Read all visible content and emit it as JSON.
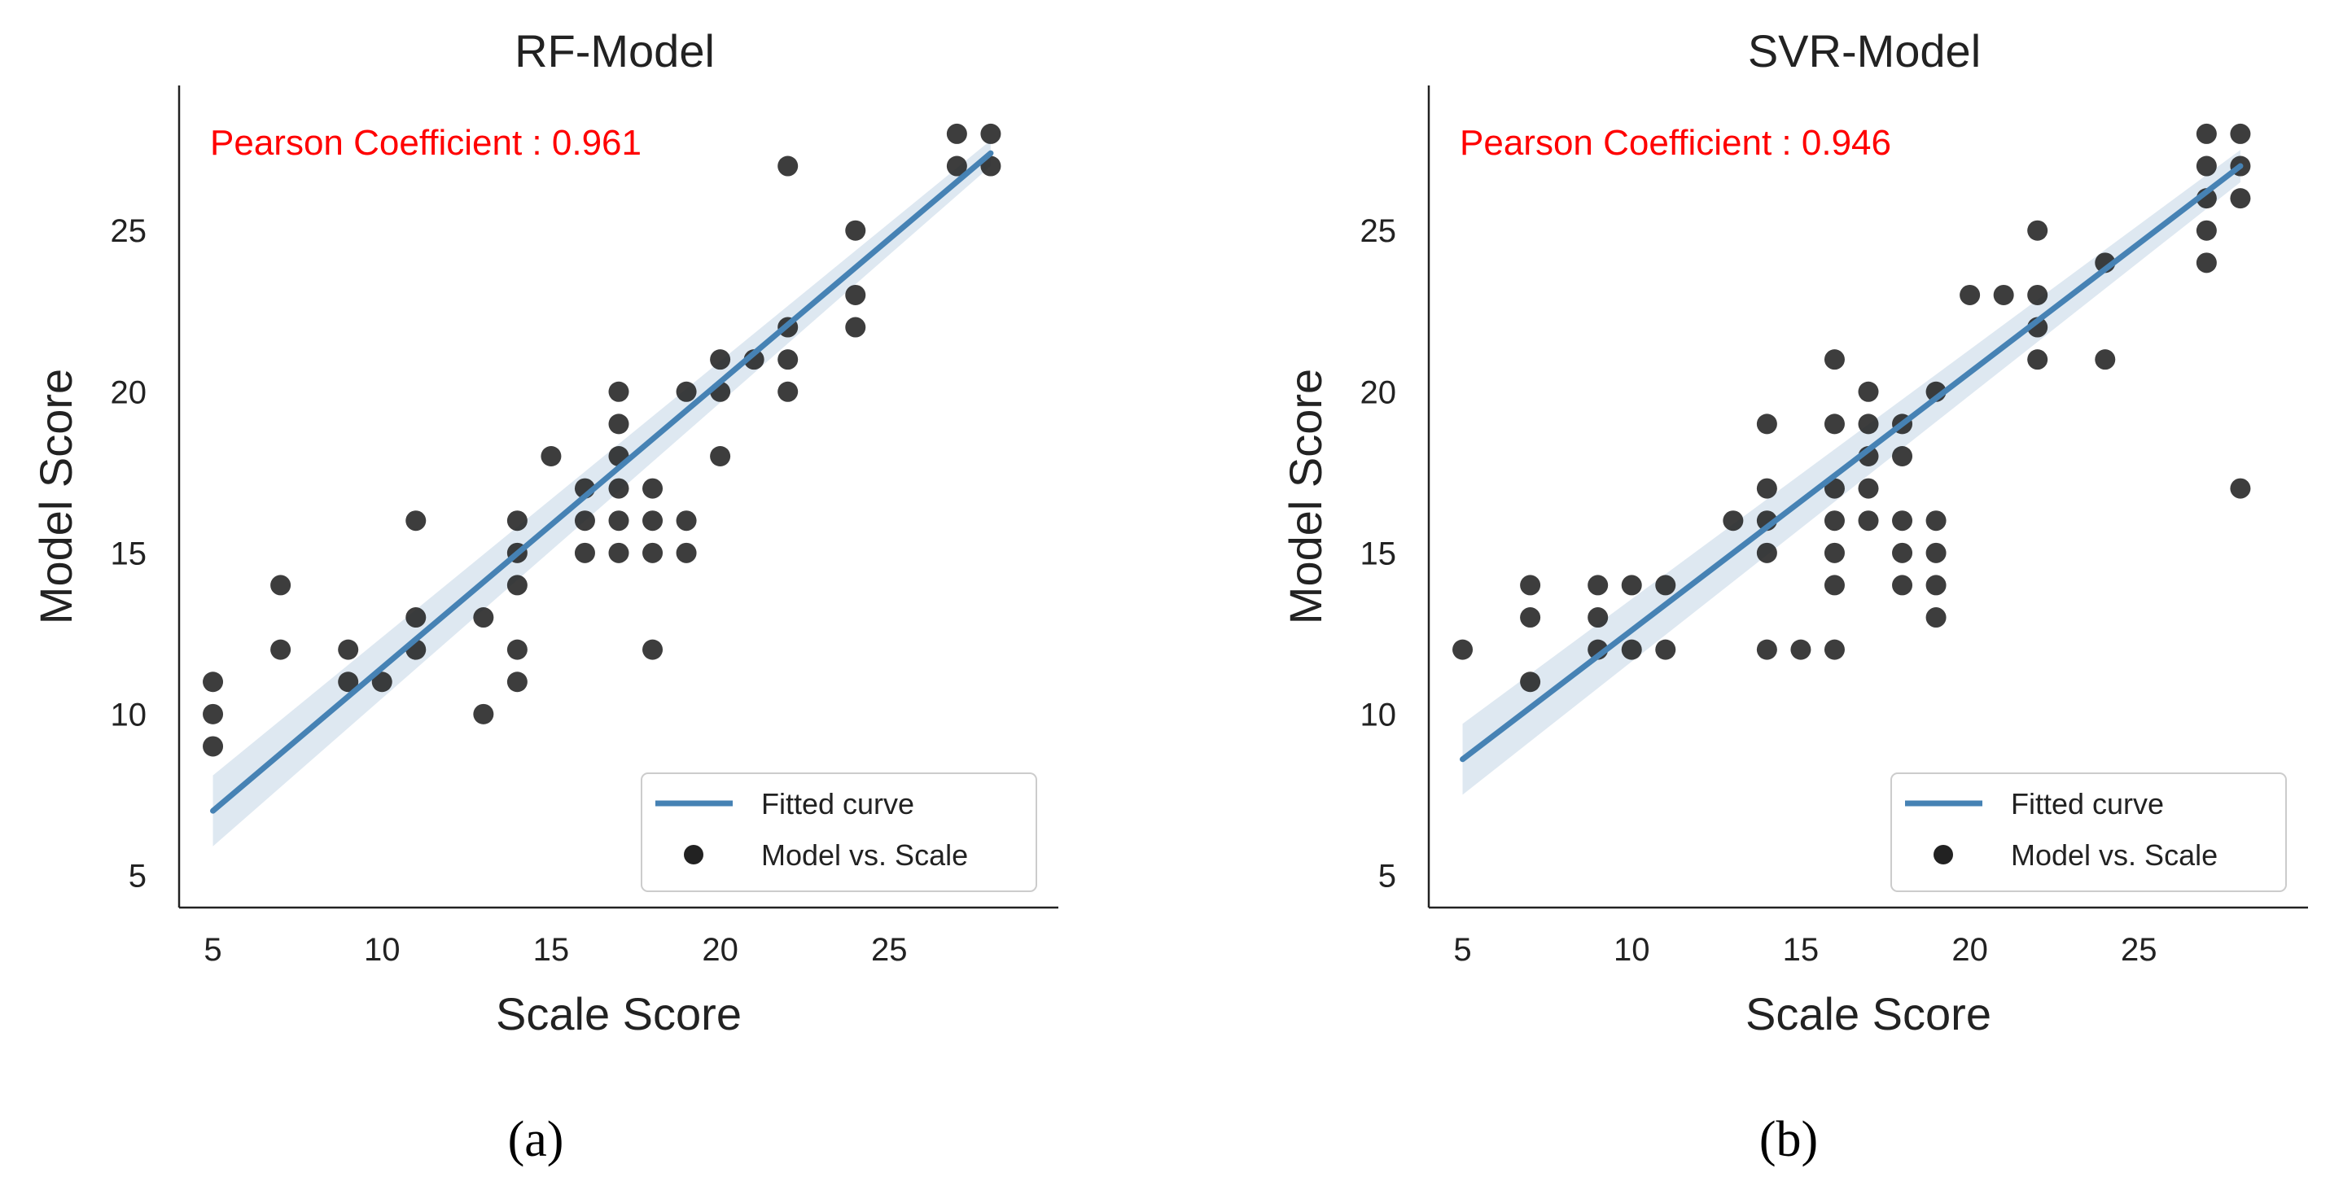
{
  "chart_data": [
    {
      "type": "scatter",
      "title": "RF-Model",
      "xlabel": "Scale Score",
      "ylabel": "Model Score",
      "xlim": [
        4,
        30
      ],
      "ylim": [
        4,
        29.5
      ],
      "xticks": [
        5,
        10,
        15,
        20,
        25
      ],
      "yticks": [
        5,
        10,
        15,
        20,
        25
      ],
      "grid": false,
      "legend_position": "bottom-right",
      "annotation": "Pearson Coefficient : 0.961",
      "panel_label": "(a)",
      "fit": {
        "name": "Fitted curve",
        "x": [
          5,
          28
        ],
        "y": [
          7.0,
          27.4
        ],
        "band_low": [
          5.9,
          27.0
        ],
        "band_high": [
          8.1,
          27.8
        ]
      },
      "series": [
        {
          "name": "Model vs. Scale",
          "points": [
            [
              5,
              11
            ],
            [
              5,
              10
            ],
            [
              5,
              9
            ],
            [
              7,
              14
            ],
            [
              7,
              12
            ],
            [
              9,
              12
            ],
            [
              9,
              11
            ],
            [
              10,
              11
            ],
            [
              11,
              16
            ],
            [
              11,
              13
            ],
            [
              11,
              12
            ],
            [
              13,
              13
            ],
            [
              13,
              10
            ],
            [
              14,
              16
            ],
            [
              14,
              15
            ],
            [
              14,
              14
            ],
            [
              14,
              12
            ],
            [
              14,
              11
            ],
            [
              15,
              18
            ],
            [
              16,
              17
            ],
            [
              16,
              16
            ],
            [
              16,
              15
            ],
            [
              17,
              20
            ],
            [
              17,
              19
            ],
            [
              17,
              18
            ],
            [
              17,
              17
            ],
            [
              17,
              16
            ],
            [
              17,
              15
            ],
            [
              18,
              17
            ],
            [
              18,
              16
            ],
            [
              18,
              15
            ],
            [
              18,
              12
            ],
            [
              19,
              20
            ],
            [
              19,
              16
            ],
            [
              19,
              15
            ],
            [
              20,
              21
            ],
            [
              20,
              20
            ],
            [
              20,
              18
            ],
            [
              21,
              21
            ],
            [
              22,
              27
            ],
            [
              22,
              22
            ],
            [
              22,
              21
            ],
            [
              22,
              20
            ],
            [
              24,
              25
            ],
            [
              24,
              23
            ],
            [
              24,
              22
            ],
            [
              27,
              28
            ],
            [
              27,
              27
            ],
            [
              28,
              28
            ],
            [
              28,
              27
            ]
          ]
        }
      ]
    },
    {
      "type": "scatter",
      "title": "SVR-Model",
      "xlabel": "Scale Score",
      "ylabel": "Model Score",
      "xlim": [
        4,
        30
      ],
      "ylim": [
        4,
        29.5
      ],
      "xticks": [
        5,
        10,
        15,
        20,
        25
      ],
      "yticks": [
        5,
        10,
        15,
        20,
        25
      ],
      "grid": false,
      "legend_position": "bottom-right",
      "annotation": "Pearson Coefficient : 0.946",
      "panel_label": "(b)",
      "fit": {
        "name": "Fitted curve",
        "x": [
          5,
          28
        ],
        "y": [
          8.6,
          27.0
        ],
        "band_low": [
          7.5,
          26.5
        ],
        "band_high": [
          9.7,
          27.5
        ]
      },
      "series": [
        {
          "name": "Model vs. Scale",
          "points": [
            [
              5,
              12
            ],
            [
              7,
              14
            ],
            [
              7,
              13
            ],
            [
              7,
              11
            ],
            [
              9,
              14
            ],
            [
              9,
              13
            ],
            [
              9,
              12
            ],
            [
              10,
              14
            ],
            [
              10,
              12
            ],
            [
              11,
              14
            ],
            [
              11,
              12
            ],
            [
              13,
              16
            ],
            [
              14,
              19
            ],
            [
              14,
              17
            ],
            [
              14,
              16
            ],
            [
              14,
              15
            ],
            [
              14,
              12
            ],
            [
              15,
              12
            ],
            [
              16,
              21
            ],
            [
              16,
              19
            ],
            [
              16,
              17
            ],
            [
              16,
              16
            ],
            [
              16,
              15
            ],
            [
              16,
              14
            ],
            [
              16,
              12
            ],
            [
              17,
              20
            ],
            [
              17,
              19
            ],
            [
              17,
              18
            ],
            [
              17,
              17
            ],
            [
              17,
              16
            ],
            [
              18,
              19
            ],
            [
              18,
              18
            ],
            [
              18,
              16
            ],
            [
              18,
              15
            ],
            [
              18,
              14
            ],
            [
              19,
              20
            ],
            [
              19,
              16
            ],
            [
              19,
              15
            ],
            [
              19,
              14
            ],
            [
              19,
              13
            ],
            [
              20,
              23
            ],
            [
              21,
              23
            ],
            [
              22,
              25
            ],
            [
              22,
              23
            ],
            [
              22,
              22
            ],
            [
              22,
              21
            ],
            [
              24,
              24
            ],
            [
              24,
              21
            ],
            [
              27,
              28
            ],
            [
              27,
              27
            ],
            [
              27,
              26
            ],
            [
              27,
              25
            ],
            [
              27,
              24
            ],
            [
              28,
              28
            ],
            [
              28,
              27
            ],
            [
              28,
              26
            ],
            [
              28,
              17
            ]
          ]
        }
      ]
    }
  ]
}
